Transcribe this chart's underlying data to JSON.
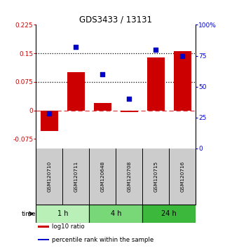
{
  "title": "GDS3433 / 13131",
  "samples": [
    "GSM120710",
    "GSM120711",
    "GSM120648",
    "GSM120708",
    "GSM120715",
    "GSM120716"
  ],
  "log10_ratio": [
    -0.055,
    0.1,
    0.02,
    -0.005,
    0.14,
    0.155
  ],
  "percentile_rank": [
    28,
    82,
    60,
    40,
    80,
    75
  ],
  "time_groups": [
    {
      "label": "1 h",
      "samples": [
        0,
        1
      ],
      "color": "#b8f0b8"
    },
    {
      "label": "4 h",
      "samples": [
        2,
        3
      ],
      "color": "#78d878"
    },
    {
      "label": "24 h",
      "samples": [
        4,
        5
      ],
      "color": "#3cb83c"
    }
  ],
  "bar_color": "#cc0000",
  "dot_color": "#0000cc",
  "ylim_left": [
    -0.1,
    0.225
  ],
  "ylim_right": [
    0,
    100
  ],
  "yticks_left": [
    -0.075,
    0,
    0.075,
    0.15,
    0.225
  ],
  "yticks_right": [
    0,
    25,
    50,
    75,
    100
  ],
  "hlines": [
    0.075,
    0.15
  ],
  "zero_line": 0.0,
  "bar_width": 0.65,
  "sample_panel_color": "#cccccc",
  "legend_items": [
    {
      "color": "#cc0000",
      "label": "log10 ratio"
    },
    {
      "color": "#0000cc",
      "label": "percentile rank within the sample"
    }
  ]
}
